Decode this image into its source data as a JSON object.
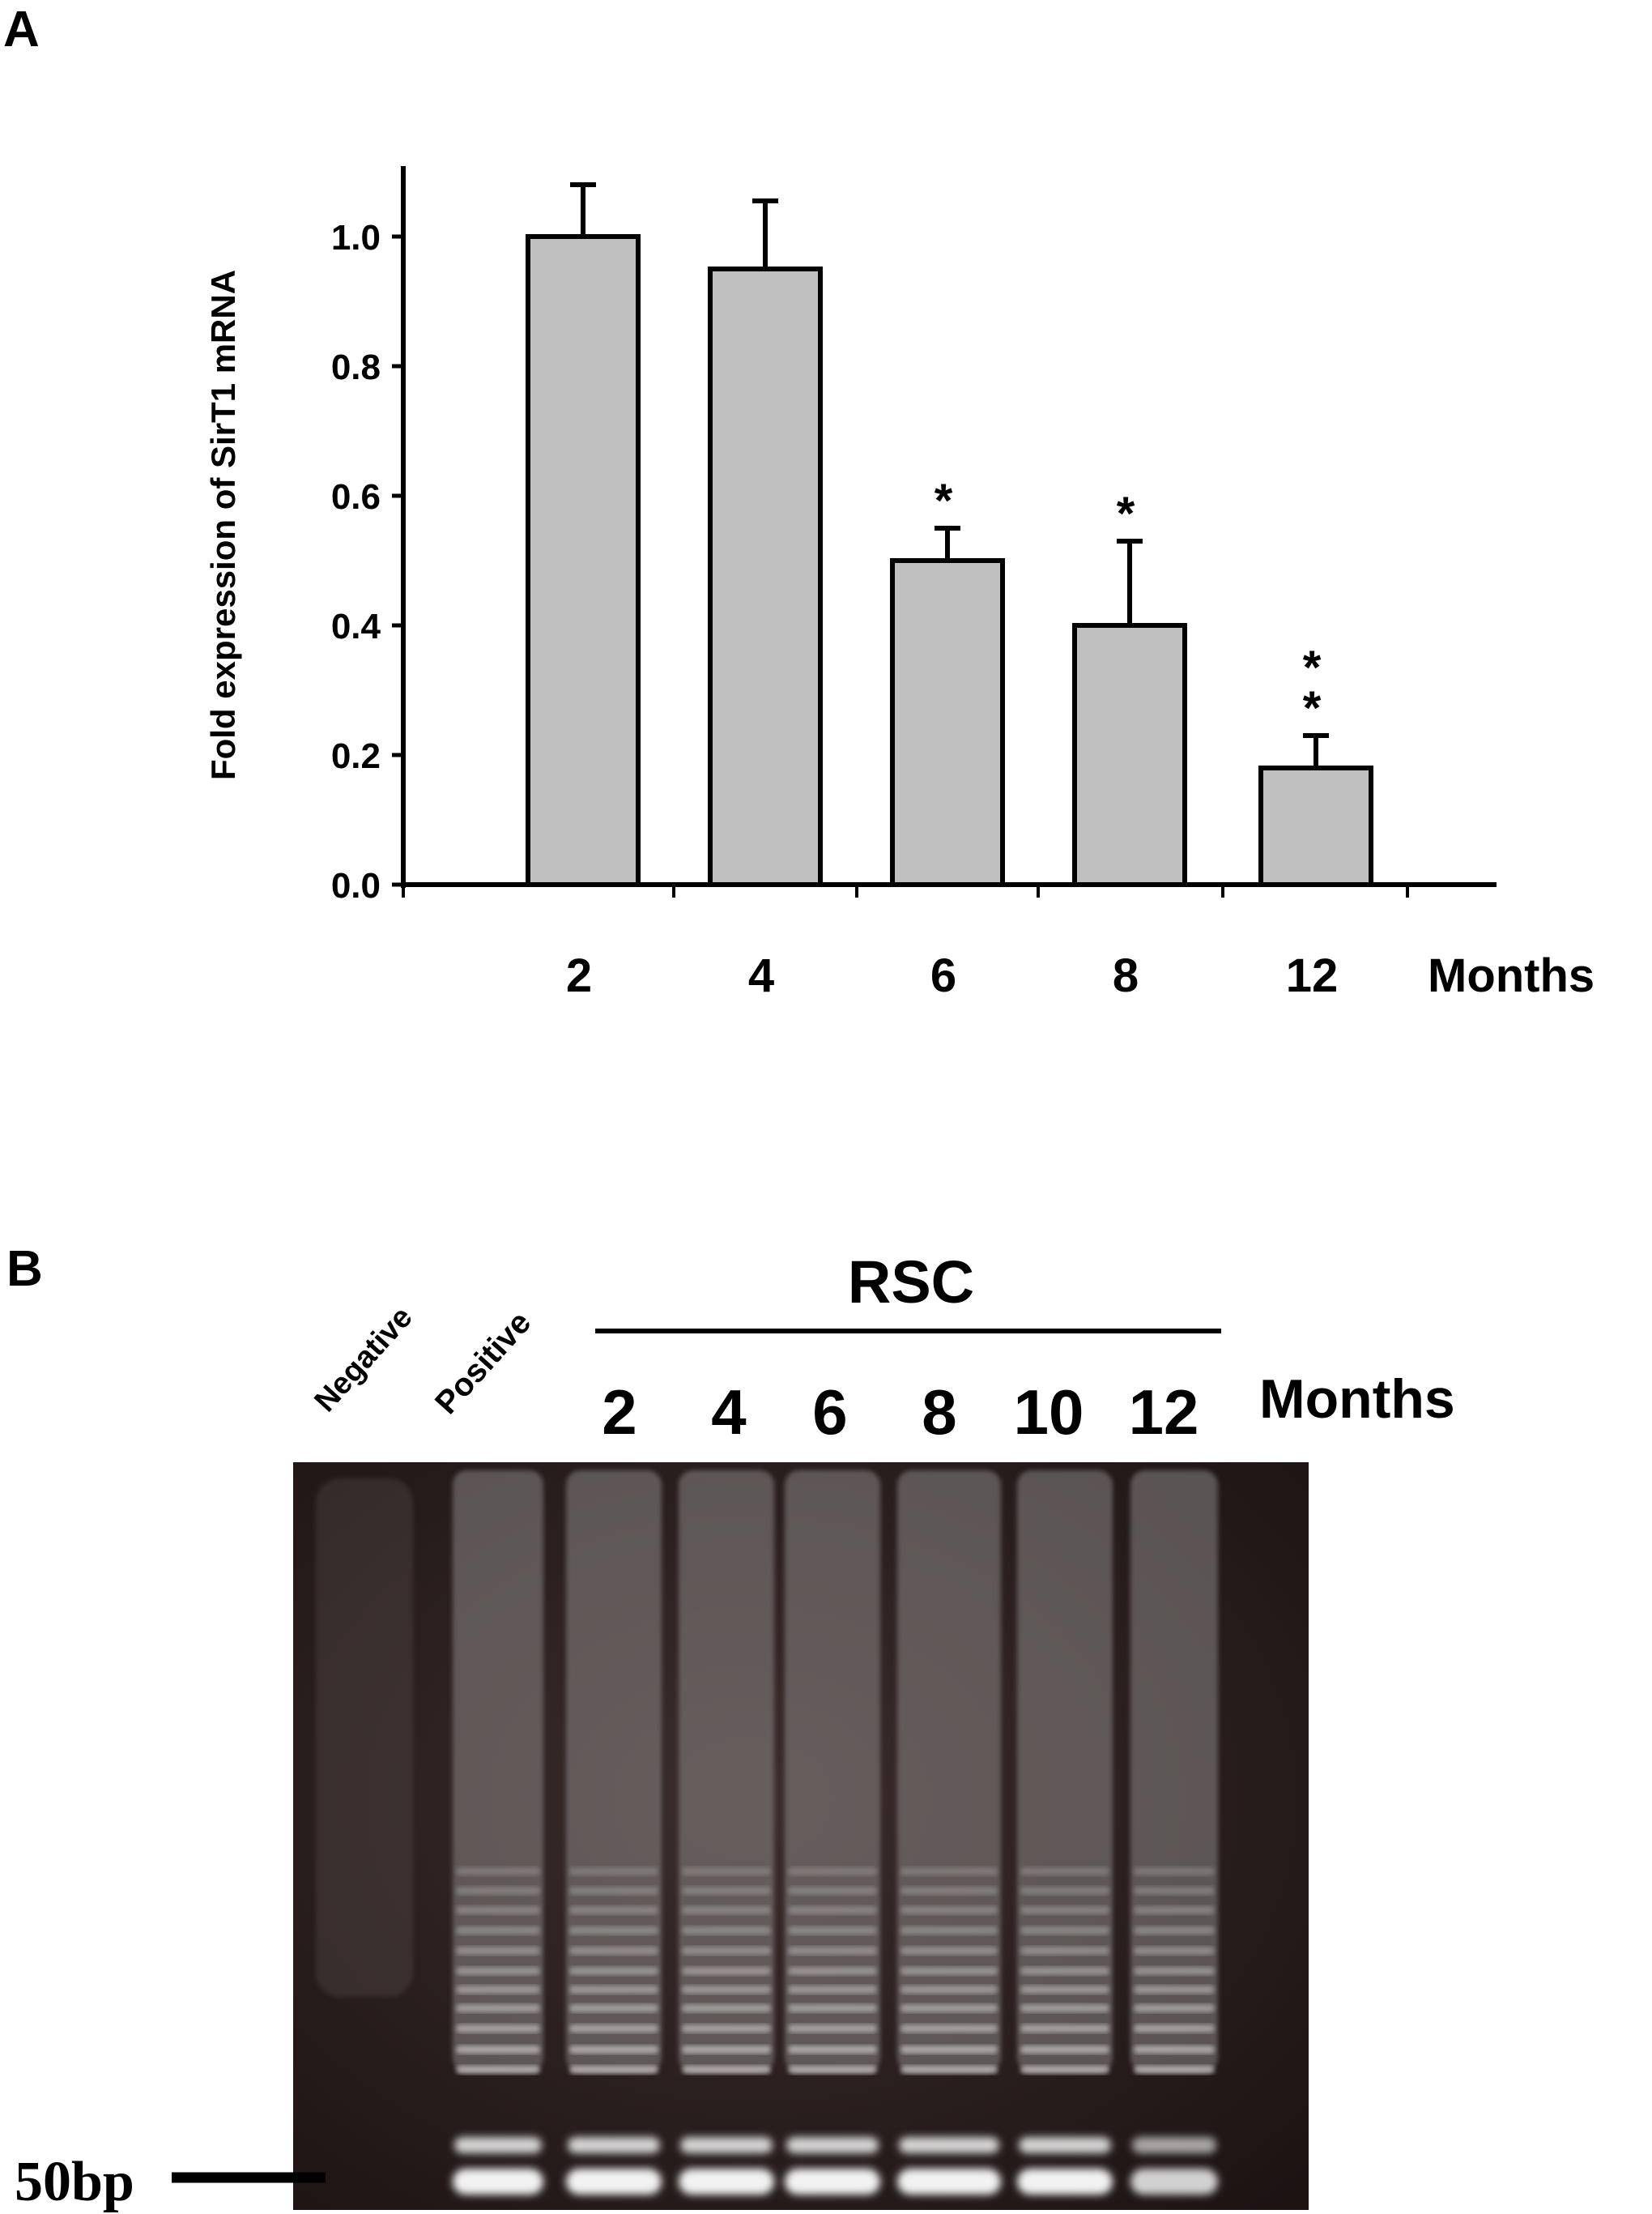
{
  "panel_a": {
    "letter": "A"
  },
  "panel_b": {
    "letter": "B",
    "group_label": "RSC",
    "lane_labels": [
      "Negative",
      "Positive"
    ],
    "month_labels": [
      "2",
      "4",
      "6",
      "8",
      "10",
      "12"
    ],
    "unit_label": "Months",
    "marker_label": "50bp",
    "gel_colors": {
      "background": "#2a1d1d",
      "band": "#f2f2f2",
      "lane": "#8a8585"
    }
  },
  "chart_data": {
    "type": "bar",
    "categories": [
      "2",
      "4",
      "6",
      "8",
      "12"
    ],
    "values": [
      1.0,
      0.95,
      0.5,
      0.4,
      0.18
    ],
    "errors": [
      0.08,
      0.105,
      0.05,
      0.13,
      0.05
    ],
    "significance": [
      "",
      "",
      "*",
      "*",
      "**"
    ],
    "title": "",
    "xlabel": "Months",
    "ylabel": "Fold expression of SirT1 mRNA",
    "ylim": [
      0,
      1.1
    ],
    "yticks": [
      "0.0",
      "0.2",
      "0.4",
      "0.6",
      "0.8",
      "1.0"
    ],
    "bar_color": "#c0c0c0",
    "grid": false,
    "legend": "none"
  }
}
